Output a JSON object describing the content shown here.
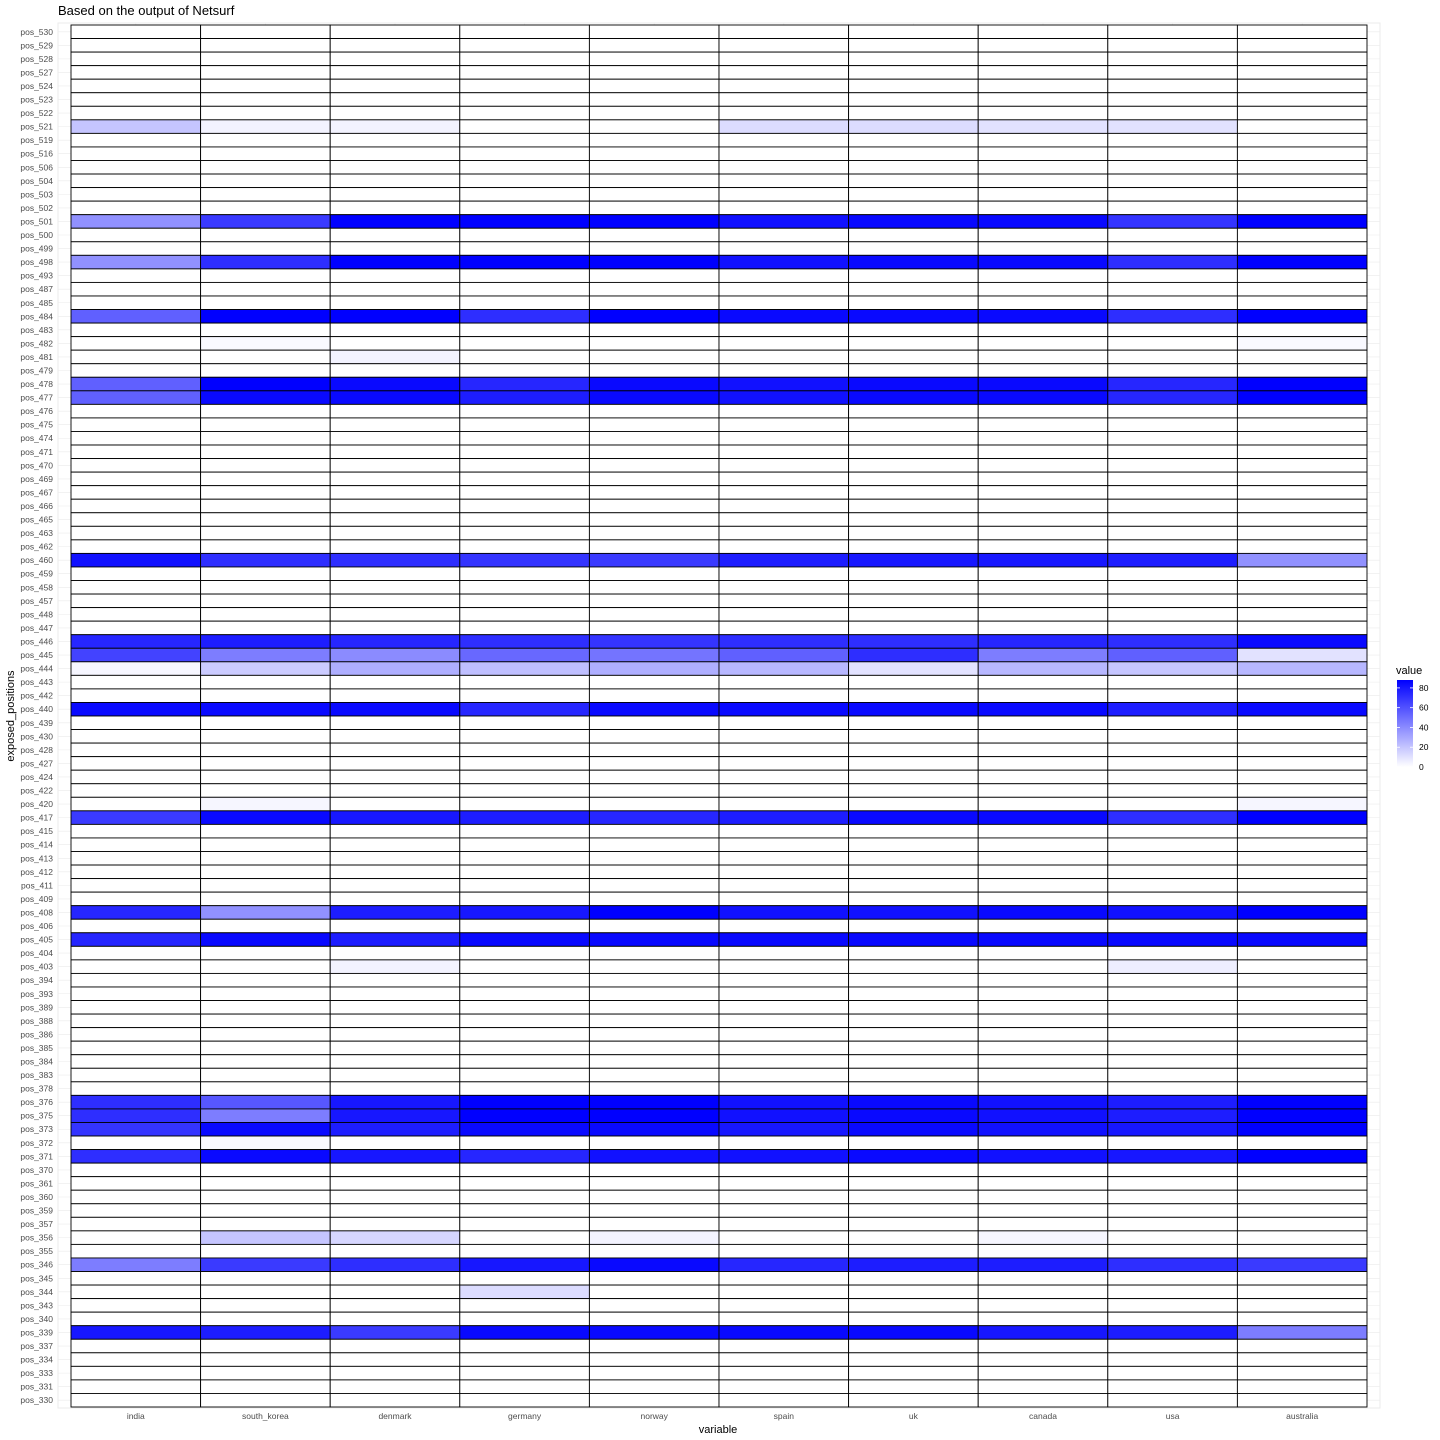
{
  "chart_data": {
    "type": "heatmap",
    "title": "Based on the output of Netsurf",
    "xlabel": "variable",
    "ylabel": "exposed_positions",
    "categories": [
      "india",
      "south_korea",
      "denmark",
      "germany",
      "norway",
      "spain",
      "uk",
      "canada",
      "usa",
      "australia"
    ],
    "rows": [
      "pos_530",
      "pos_529",
      "pos_528",
      "pos_527",
      "pos_524",
      "pos_523",
      "pos_522",
      "pos_521",
      "pos_519",
      "pos_516",
      "pos_506",
      "pos_504",
      "pos_503",
      "pos_502",
      "pos_501",
      "pos_500",
      "pos_499",
      "pos_498",
      "pos_493",
      "pos_487",
      "pos_485",
      "pos_484",
      "pos_483",
      "pos_482",
      "pos_481",
      "pos_479",
      "pos_478",
      "pos_477",
      "pos_476",
      "pos_475",
      "pos_474",
      "pos_471",
      "pos_470",
      "pos_469",
      "pos_467",
      "pos_466",
      "pos_465",
      "pos_463",
      "pos_462",
      "pos_460",
      "pos_459",
      "pos_458",
      "pos_457",
      "pos_448",
      "pos_447",
      "pos_446",
      "pos_445",
      "pos_444",
      "pos_443",
      "pos_442",
      "pos_440",
      "pos_439",
      "pos_430",
      "pos_428",
      "pos_427",
      "pos_424",
      "pos_422",
      "pos_420",
      "pos_417",
      "pos_415",
      "pos_414",
      "pos_413",
      "pos_412",
      "pos_411",
      "pos_409",
      "pos_408",
      "pos_406",
      "pos_405",
      "pos_404",
      "pos_403",
      "pos_394",
      "pos_393",
      "pos_389",
      "pos_388",
      "pos_386",
      "pos_385",
      "pos_384",
      "pos_383",
      "pos_378",
      "pos_376",
      "pos_375",
      "pos_373",
      "pos_372",
      "pos_371",
      "pos_370",
      "pos_361",
      "pos_360",
      "pos_359",
      "pos_357",
      "pos_356",
      "pos_355",
      "pos_346",
      "pos_345",
      "pos_344",
      "pos_343",
      "pos_340",
      "pos_339",
      "pos_337",
      "pos_334",
      "pos_333",
      "pos_331",
      "pos_330"
    ],
    "values": {
      "pos_521": [
        20,
        4,
        4,
        0,
        0,
        12,
        12,
        10,
        10,
        0
      ],
      "pos_501": [
        38,
        68,
        88,
        88,
        88,
        82,
        85,
        85,
        70,
        88
      ],
      "pos_498": [
        38,
        72,
        88,
        88,
        88,
        82,
        85,
        85,
        72,
        88
      ],
      "pos_484": [
        55,
        88,
        88,
        72,
        88,
        85,
        85,
        85,
        72,
        88
      ],
      "pos_482": [
        0,
        2,
        0,
        0,
        0,
        0,
        0,
        0,
        0,
        2
      ],
      "pos_481": [
        0,
        0,
        4,
        0,
        0,
        0,
        0,
        0,
        0,
        0
      ],
      "pos_478": [
        55,
        88,
        85,
        75,
        85,
        82,
        85,
        85,
        75,
        88
      ],
      "pos_477": [
        55,
        85,
        85,
        78,
        85,
        82,
        85,
        85,
        75,
        88
      ],
      "pos_460": [
        82,
        72,
        72,
        70,
        68,
        78,
        80,
        80,
        78,
        38
      ],
      "pos_446": [
        75,
        78,
        75,
        72,
        70,
        72,
        72,
        75,
        72,
        85
      ],
      "pos_445": [
        65,
        45,
        40,
        52,
        48,
        55,
        72,
        45,
        55,
        10
      ],
      "pos_444": [
        3,
        18,
        28,
        22,
        28,
        25,
        10,
        25,
        20,
        25
      ],
      "pos_440": [
        85,
        85,
        85,
        75,
        85,
        85,
        85,
        85,
        78,
        85
      ],
      "pos_420": [
        0,
        3,
        0,
        0,
        0,
        0,
        0,
        0,
        0,
        3
      ],
      "pos_417": [
        68,
        85,
        80,
        78,
        75,
        78,
        85,
        85,
        72,
        88
      ],
      "pos_408": [
        75,
        38,
        78,
        80,
        88,
        82,
        82,
        85,
        82,
        88
      ],
      "pos_405": [
        75,
        85,
        78,
        85,
        85,
        85,
        85,
        85,
        85,
        85
      ],
      "pos_403": [
        0,
        0,
        4,
        0,
        0,
        0,
        0,
        0,
        6,
        0
      ],
      "pos_376": [
        72,
        58,
        80,
        88,
        88,
        82,
        85,
        82,
        78,
        88
      ],
      "pos_375": [
        72,
        45,
        80,
        88,
        88,
        82,
        85,
        82,
        78,
        88
      ],
      "pos_373": [
        70,
        85,
        78,
        85,
        85,
        80,
        85,
        82,
        80,
        88
      ],
      "pos_372": [
        0,
        2,
        0,
        0,
        0,
        0,
        0,
        0,
        0,
        0
      ],
      "pos_371": [
        72,
        85,
        80,
        75,
        82,
        82,
        85,
        82,
        80,
        88
      ],
      "pos_356": [
        0,
        20,
        14,
        0,
        4,
        0,
        0,
        3,
        0,
        0
      ],
      "pos_346": [
        45,
        68,
        72,
        80,
        85,
        75,
        78,
        78,
        72,
        68
      ],
      "pos_344": [
        0,
        0,
        0,
        12,
        0,
        0,
        0,
        0,
        0,
        0
      ],
      "pos_339": [
        80,
        78,
        68,
        85,
        85,
        85,
        85,
        80,
        78,
        45
      ]
    },
    "legend": {
      "title": "value",
      "ticks": [
        "80",
        "60",
        "40",
        "20",
        "0"
      ],
      "tick_values": [
        80,
        60,
        40,
        20,
        0
      ],
      "range": [
        0,
        88
      ],
      "position": "right"
    },
    "low_color": "#ffffff",
    "high_color": "#0000ff",
    "grid": true
  }
}
